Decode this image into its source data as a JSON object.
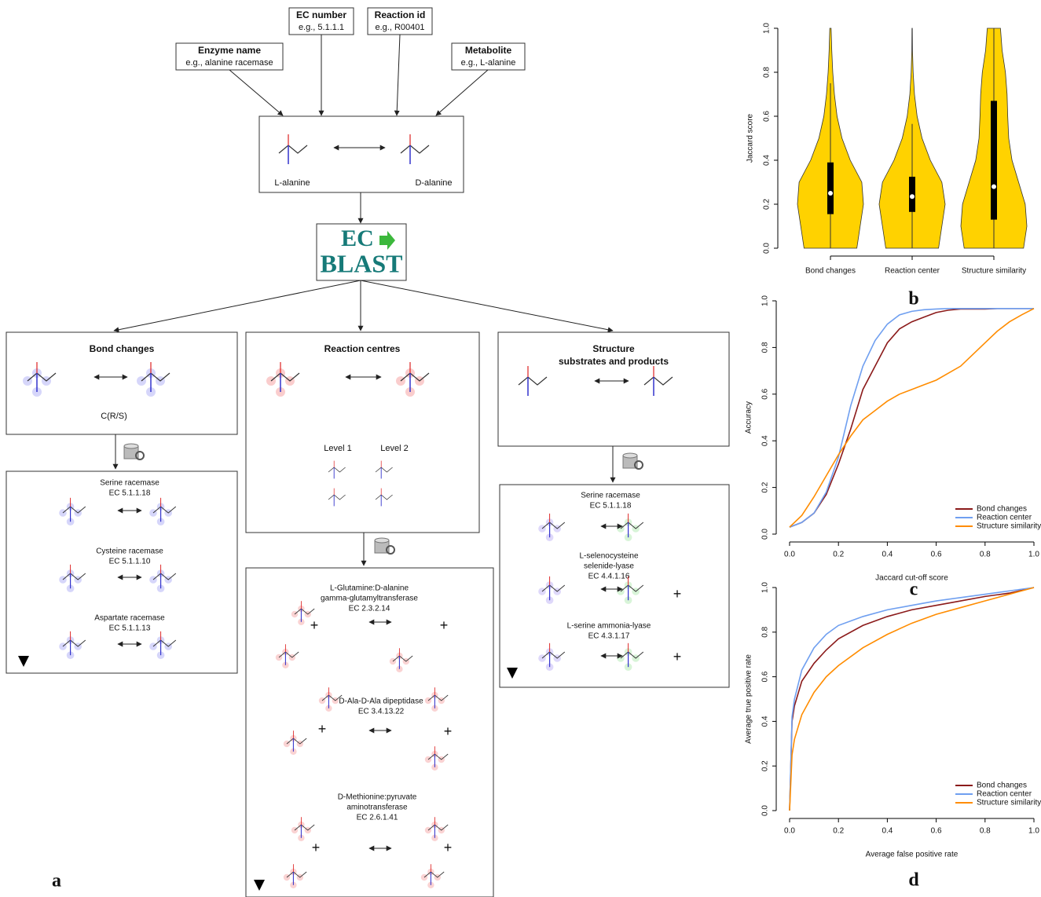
{
  "diagram": {
    "panel_label": "a",
    "inputs": [
      {
        "title": "Enzyme name",
        "example": "e.g., alanine racemase"
      },
      {
        "title": "EC number",
        "example": "e.g., 5.1.1.1"
      },
      {
        "title": "Reaction id",
        "example": "e.g., R00401"
      },
      {
        "title": "Metabolite",
        "example": "e.g., L-alanine"
      }
    ],
    "query": {
      "left": "L-alanine",
      "right": "D-alanine"
    },
    "logo": [
      "EC",
      "BLAST"
    ],
    "methods": [
      {
        "title": [
          "Bond changes"
        ],
        "caption": "C(R/S)"
      },
      {
        "title": [
          "Reaction centres"
        ],
        "levels": [
          "Level 1",
          "Level 2"
        ]
      },
      {
        "title": [
          "Structure",
          "substrates and products"
        ]
      }
    ],
    "plus": "+",
    "results": [
      [
        {
          "lines": [
            "Serine racemase",
            "EC 5.1.1.18"
          ]
        },
        {
          "lines": [
            "Cysteine racemase",
            "EC 5.1.1.10"
          ]
        },
        {
          "lines": [
            "Aspartate racemase",
            "EC 5.1.1.13"
          ]
        }
      ],
      [
        {
          "lines": [
            "L-Glutamine:D-alanine",
            "gamma-glutamyltransferase",
            "EC 2.3.2.14"
          ]
        },
        {
          "lines": [
            "D-Ala-D-Ala dipeptidase",
            "EC 3.4.13.22"
          ]
        },
        {
          "lines": [
            "D-Methionine:pyruvate",
            "aminotransferase",
            "EC 2.6.1.41"
          ]
        }
      ],
      [
        {
          "lines": [
            "Serine racemase",
            "EC 5.1.1.18"
          ]
        },
        {
          "lines": [
            "L-selenocysteine",
            "selenide-lyase",
            "EC 4.4.1.16"
          ]
        },
        {
          "lines": [
            "L-serine ammonia-lyase",
            "EC 4.3.1.17"
          ]
        }
      ]
    ]
  },
  "chart_data": [
    {
      "type": "violin",
      "label": "b",
      "ylabel": "Jaccard score",
      "color": "#ffd200",
      "categories": [
        "Bond changes",
        "Reaction center",
        "Structure similarity"
      ],
      "ylim": [
        0,
        1
      ],
      "yticks": [
        {
          "value": 0,
          "label": "0.0"
        },
        0.2,
        0.4,
        0.6,
        0.8,
        {
          "value": 1,
          "label": "1.0"
        }
      ],
      "y_grid": [
        0,
        0.1,
        0.2,
        0.3,
        0.4,
        0.5,
        0.6,
        0.7,
        0.8,
        0.9,
        1.0
      ],
      "violins": [
        {
          "density": [
            0.8,
            0.9,
            1.0,
            0.95,
            0.6,
            0.35,
            0.2,
            0.12,
            0.07,
            0.04,
            0.02
          ],
          "median": 0.25,
          "q1": 0.155,
          "q3": 0.39,
          "whisker_low": 0,
          "whisker_high": 0.75
        },
        {
          "density": [
            0.8,
            0.9,
            1.0,
            0.9,
            0.55,
            0.3,
            0.15,
            0.07,
            0.03,
            0.01,
            0.005
          ],
          "median": 0.235,
          "q1": 0.165,
          "q3": 0.325,
          "whisker_low": 0,
          "whisker_high": 0.565
        },
        {
          "density": [
            0.9,
            1.0,
            0.95,
            0.75,
            0.55,
            0.45,
            0.42,
            0.4,
            0.35,
            0.25,
            0.2
          ],
          "median": 0.28,
          "q1": 0.13,
          "q3": 0.67,
          "whisker_low": 0,
          "whisker_high": 1.0
        }
      ]
    },
    {
      "type": "line",
      "label": "c",
      "xlabel": "Jaccard cut-off score",
      "ylabel": "Accuracy",
      "legend": "bottom-right",
      "xlim": [
        0,
        1
      ],
      "ylim": [
        0,
        1
      ],
      "xticks": [
        {
          "value": 0,
          "label": "0.0"
        },
        0.2,
        0.4,
        0.6,
        0.8,
        {
          "value": 1,
          "label": "1.0"
        }
      ],
      "yticks": [
        {
          "value": 0,
          "label": "0.0"
        },
        0.2,
        0.4,
        0.6,
        0.8,
        {
          "value": 1,
          "label": "1.0"
        }
      ],
      "x": [
        0,
        0.05,
        0.1,
        0.15,
        0.2,
        0.25,
        0.3,
        0.35,
        0.4,
        0.45,
        0.5,
        0.55,
        0.6,
        0.65,
        0.7,
        0.75,
        0.8,
        0.85,
        0.9,
        0.95,
        1.0
      ],
      "series": [
        {
          "name": "Bond changes",
          "color": "#8b1a1a",
          "values": [
            0.03,
            0.05,
            0.09,
            0.17,
            0.3,
            0.45,
            0.62,
            0.72,
            0.82,
            0.88,
            0.91,
            0.93,
            0.95,
            0.96,
            0.965,
            0.965,
            0.965,
            0.967,
            0.967,
            0.967,
            0.967
          ]
        },
        {
          "name": "Reaction center",
          "color": "#6f9ff0",
          "values": [
            0.03,
            0.05,
            0.09,
            0.18,
            0.33,
            0.55,
            0.72,
            0.83,
            0.9,
            0.94,
            0.955,
            0.962,
            0.965,
            0.967,
            0.967,
            0.967,
            0.967,
            0.967,
            0.967,
            0.967,
            0.967
          ]
        },
        {
          "name": "Structure similarity",
          "color": "#ff8c00",
          "values": [
            0.03,
            0.08,
            0.16,
            0.25,
            0.34,
            0.42,
            0.49,
            0.53,
            0.57,
            0.6,
            0.62,
            0.64,
            0.66,
            0.69,
            0.72,
            0.77,
            0.82,
            0.87,
            0.91,
            0.94,
            0.967
          ]
        }
      ]
    },
    {
      "type": "line",
      "label": "d",
      "xlabel": "Average false positive rate",
      "ylabel": "Average true positive rate",
      "legend": "bottom-right",
      "xlim": [
        0,
        1
      ],
      "ylim": [
        0,
        1
      ],
      "xticks": [
        {
          "value": 0,
          "label": "0.0"
        },
        0.2,
        0.4,
        0.6,
        0.8,
        {
          "value": 1,
          "label": "1.0"
        }
      ],
      "yticks": [
        {
          "value": 0,
          "label": "0.0"
        },
        0.2,
        0.4,
        0.6,
        0.8,
        {
          "value": 1,
          "label": "1.0"
        }
      ],
      "x": [
        0,
        0.01,
        0.02,
        0.05,
        0.1,
        0.15,
        0.2,
        0.3,
        0.4,
        0.5,
        0.6,
        0.7,
        0.8,
        0.9,
        1.0
      ],
      "series": [
        {
          "name": "Bond changes",
          "color": "#8b1a1a",
          "values": [
            0,
            0.4,
            0.47,
            0.58,
            0.66,
            0.72,
            0.77,
            0.83,
            0.87,
            0.9,
            0.92,
            0.94,
            0.96,
            0.975,
            1
          ]
        },
        {
          "name": "Reaction center",
          "color": "#6f9ff0",
          "values": [
            0,
            0.42,
            0.5,
            0.63,
            0.73,
            0.79,
            0.83,
            0.87,
            0.9,
            0.92,
            0.94,
            0.955,
            0.97,
            0.985,
            1
          ]
        },
        {
          "name": "Structure similarity",
          "color": "#ff8c00",
          "values": [
            0,
            0.25,
            0.32,
            0.43,
            0.53,
            0.6,
            0.65,
            0.73,
            0.79,
            0.84,
            0.88,
            0.91,
            0.94,
            0.97,
            1
          ]
        }
      ]
    }
  ]
}
